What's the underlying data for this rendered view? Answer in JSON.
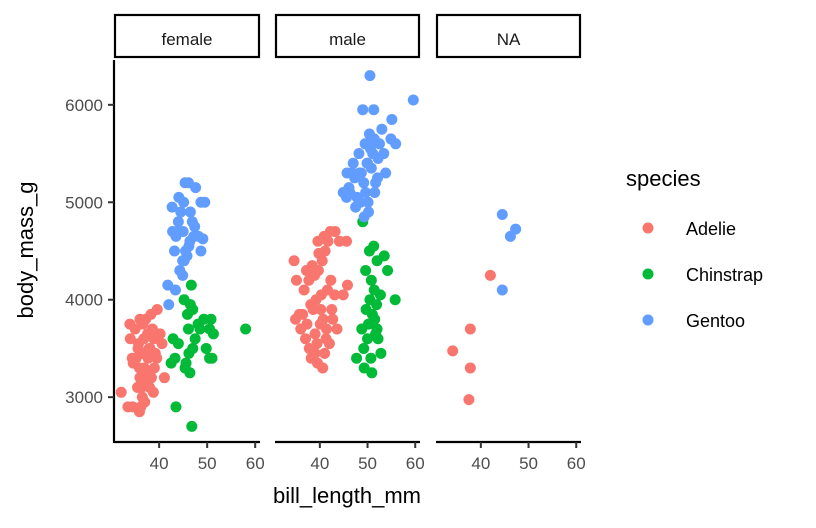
{
  "chart_data": {
    "type": "scatter",
    "xlabel": "bill_length_mm",
    "ylabel": "body_mass_g",
    "facet_by": "sex",
    "facets": [
      "female",
      "male",
      "NA"
    ],
    "xlim": [
      30.6,
      61
    ],
    "ylim": [
      2540,
      6460
    ],
    "x_ticks": [
      40,
      50,
      60
    ],
    "y_ticks": [
      3000,
      4000,
      5000,
      6000
    ],
    "y_tick_labels": [
      "3000",
      "4000",
      "5000",
      "6000"
    ],
    "x_tick_labels": [
      "40",
      "50",
      "60"
    ],
    "grid": false,
    "legend": {
      "title": "species",
      "position": "right",
      "entries": [
        {
          "label": "Adelie",
          "color": "#F8766D"
        },
        {
          "label": "Chinstrap",
          "color": "#00BA38"
        },
        {
          "label": "Gentoo",
          "color": "#619CFF"
        }
      ]
    },
    "series": [
      {
        "facet": "female",
        "species": "Adelie",
        "points": [
          [
            32.1,
            3050
          ],
          [
            33.5,
            2900
          ],
          [
            34.5,
            2900
          ],
          [
            35.9,
            2850
          ],
          [
            36.2,
            2900
          ],
          [
            36.5,
            3000
          ],
          [
            37.0,
            2950
          ],
          [
            35.5,
            3100
          ],
          [
            36.0,
            3200
          ],
          [
            37.3,
            3150
          ],
          [
            38.0,
            3100
          ],
          [
            38.8,
            3050
          ],
          [
            36.9,
            3300
          ],
          [
            35.2,
            3400
          ],
          [
            34.6,
            3350
          ],
          [
            36.4,
            3450
          ],
          [
            37.7,
            3400
          ],
          [
            38.1,
            3500
          ],
          [
            39.0,
            3300
          ],
          [
            39.5,
            3400
          ],
          [
            35.7,
            3550
          ],
          [
            36.8,
            3600
          ],
          [
            37.6,
            3650
          ],
          [
            38.6,
            3700
          ],
          [
            34.0,
            3600
          ],
          [
            35.0,
            3700
          ],
          [
            36.0,
            3800
          ],
          [
            37.2,
            3800
          ],
          [
            38.3,
            3850
          ],
          [
            39.6,
            3900
          ],
          [
            40.2,
            3650
          ],
          [
            36.6,
            3750
          ],
          [
            37.9,
            3500
          ],
          [
            34.4,
            3400
          ],
          [
            35.9,
            3300
          ],
          [
            38.9,
            3600
          ],
          [
            39.2,
            3450
          ],
          [
            37.5,
            3250
          ],
          [
            36.3,
            3100
          ],
          [
            40.6,
            3550
          ],
          [
            41.1,
            3200
          ],
          [
            33.9,
            3750
          ],
          [
            35.6,
            3500
          ],
          [
            38.4,
            3200
          ]
        ]
      },
      {
        "facet": "female",
        "species": "Chinstrap",
        "points": [
          [
            42.5,
            3350
          ],
          [
            43.3,
            3400
          ],
          [
            43.5,
            2900
          ],
          [
            46.4,
            3250
          ],
          [
            46.8,
            2700
          ],
          [
            45.4,
            3300
          ],
          [
            46.2,
            3450
          ],
          [
            47.0,
            3500
          ],
          [
            47.5,
            3600
          ],
          [
            48.5,
            3700
          ],
          [
            49.3,
            3800
          ],
          [
            50.5,
            3400
          ],
          [
            51.0,
            3400
          ],
          [
            50.5,
            3700
          ],
          [
            50.8,
            3800
          ],
          [
            51.3,
            3650
          ],
          [
            46.1,
            3700
          ],
          [
            45.9,
            3850
          ],
          [
            46.5,
            3950
          ],
          [
            46.7,
            4150
          ],
          [
            45.2,
            4000
          ],
          [
            44.0,
            3550
          ],
          [
            42.9,
            3600
          ],
          [
            58.0,
            3700
          ],
          [
            47.0,
            3900
          ],
          [
            48.1,
            3750
          ],
          [
            49.8,
            3500
          ],
          [
            45.6,
            3350
          ]
        ]
      },
      {
        "facet": "female",
        "species": "Gentoo",
        "points": [
          [
            42.0,
            3950
          ],
          [
            41.8,
            4150
          ],
          [
            43.4,
            4100
          ],
          [
            44.3,
            4300
          ],
          [
            44.9,
            4400
          ],
          [
            45.5,
            4500
          ],
          [
            46.2,
            4550
          ],
          [
            45.0,
            4700
          ],
          [
            43.5,
            4650
          ],
          [
            42.8,
            4700
          ],
          [
            44.0,
            4800
          ],
          [
            44.5,
            4900
          ],
          [
            45.1,
            5000
          ],
          [
            45.4,
            5200
          ],
          [
            46.1,
            5200
          ],
          [
            47.6,
            5150
          ],
          [
            48.7,
            5000
          ],
          [
            49.5,
            5000
          ],
          [
            47.4,
            4750
          ],
          [
            46.4,
            4600
          ],
          [
            46.9,
            4800
          ],
          [
            47.2,
            4650
          ],
          [
            48.2,
            4650
          ],
          [
            48.7,
            4500
          ],
          [
            45.8,
            4450
          ],
          [
            44.9,
            4250
          ],
          [
            43.8,
            4700
          ],
          [
            42.7,
            4950
          ],
          [
            44.1,
            5050
          ],
          [
            46.5,
            4900
          ],
          [
            49.1,
            4625
          ],
          [
            45.2,
            4400
          ],
          [
            43.2,
            4500
          ]
        ]
      },
      {
        "facet": "male",
        "species": "Adelie",
        "points": [
          [
            34.6,
            4400
          ],
          [
            35.1,
            4200
          ],
          [
            34.9,
            3800
          ],
          [
            36.0,
            3700
          ],
          [
            36.4,
            3850
          ],
          [
            37.0,
            3600
          ],
          [
            37.8,
            3500
          ],
          [
            38.2,
            3400
          ],
          [
            39.5,
            3350
          ],
          [
            40.6,
            3300
          ],
          [
            41.0,
            3450
          ],
          [
            42.0,
            3550
          ],
          [
            39.0,
            3650
          ],
          [
            40.1,
            3750
          ],
          [
            40.7,
            3800
          ],
          [
            41.4,
            3700
          ],
          [
            38.6,
            3900
          ],
          [
            39.2,
            4000
          ],
          [
            40.3,
            4050
          ],
          [
            41.6,
            4100
          ],
          [
            37.7,
            4200
          ],
          [
            38.9,
            4250
          ],
          [
            39.7,
            4300
          ],
          [
            40.5,
            4400
          ],
          [
            41.1,
            4500
          ],
          [
            39.6,
            4600
          ],
          [
            40.9,
            4650
          ],
          [
            42.2,
            4700
          ],
          [
            43.2,
            4700
          ],
          [
            41.7,
            4600
          ],
          [
            44.1,
            4600
          ],
          [
            45.6,
            4600
          ],
          [
            39.8,
            4475
          ],
          [
            42.3,
            4200
          ],
          [
            43.1,
            4050
          ],
          [
            42.5,
            3900
          ],
          [
            37.3,
            3750
          ],
          [
            38.1,
            3950
          ],
          [
            36.7,
            4100
          ],
          [
            35.7,
            3850
          ],
          [
            42.7,
            3800
          ],
          [
            39.4,
            3550
          ],
          [
            40.2,
            3900
          ],
          [
            41.3,
            3600
          ],
          [
            38.4,
            4350
          ],
          [
            37.2,
            4300
          ],
          [
            45.8,
            4150
          ],
          [
            44.9,
            4050
          ],
          [
            43.6,
            3700
          ],
          [
            39.0,
            3450
          ]
        ]
      },
      {
        "facet": "male",
        "species": "Chinstrap",
        "points": [
          [
            49.0,
            4800
          ],
          [
            50.4,
            4500
          ],
          [
            51.3,
            4550
          ],
          [
            52.0,
            4400
          ],
          [
            49.6,
            4300
          ],
          [
            50.8,
            4200
          ],
          [
            52.7,
            4050
          ],
          [
            51.9,
            3950
          ],
          [
            53.5,
            4450
          ],
          [
            49.7,
            3900
          ],
          [
            50.2,
            3750
          ],
          [
            51.5,
            3800
          ],
          [
            48.8,
            3700
          ],
          [
            50.0,
            3600
          ],
          [
            51.7,
            3650
          ],
          [
            52.2,
            3600
          ],
          [
            49.2,
            3500
          ],
          [
            50.7,
            3400
          ],
          [
            52.8,
            3450
          ],
          [
            54.2,
            4300
          ],
          [
            55.8,
            4000
          ],
          [
            49.3,
            3300
          ],
          [
            50.9,
            3250
          ],
          [
            47.7,
            3400
          ],
          [
            52.0,
            3700
          ],
          [
            51.4,
            4100
          ],
          [
            50.5,
            4000
          ],
          [
            51.0,
            3850
          ]
        ]
      },
      {
        "facet": "male",
        "species": "Gentoo",
        "points": [
          [
            48.3,
            5300
          ],
          [
            49.2,
            5200
          ],
          [
            50.0,
            5400
          ],
          [
            51.1,
            5500
          ],
          [
            49.5,
            5600
          ],
          [
            50.4,
            5700
          ],
          [
            49.0,
            5950
          ],
          [
            51.3,
            5950
          ],
          [
            50.5,
            6300
          ],
          [
            59.6,
            6050
          ],
          [
            55.9,
            5600
          ],
          [
            54.9,
            5650
          ],
          [
            53.0,
            5750
          ],
          [
            55.1,
            5850
          ],
          [
            52.2,
            5450
          ],
          [
            51.4,
            5650
          ],
          [
            50.6,
            5550
          ],
          [
            48.2,
            5500
          ],
          [
            46.8,
            5300
          ],
          [
            46.1,
            5150
          ],
          [
            47.3,
            5250
          ],
          [
            47.8,
            5050
          ],
          [
            48.7,
            5300
          ],
          [
            49.9,
            5400
          ],
          [
            51.5,
            5100
          ],
          [
            52.1,
            5250
          ],
          [
            53.4,
            5500
          ],
          [
            51.7,
            5200
          ],
          [
            46.3,
            5100
          ],
          [
            47.5,
            4950
          ],
          [
            48.5,
            5000
          ],
          [
            49.3,
            4850
          ],
          [
            50.1,
            5000
          ],
          [
            45.6,
            5050
          ],
          [
            50.8,
            5350
          ],
          [
            49.6,
            5100
          ],
          [
            52.5,
            5600
          ],
          [
            50.2,
            4900
          ],
          [
            44.9,
            5100
          ],
          [
            45.7,
            5300
          ],
          [
            53.8,
            5300
          ],
          [
            47.0,
            5400
          ]
        ]
      },
      {
        "facet": "NA",
        "species": "Adelie",
        "points": [
          [
            34.1,
            3475
          ],
          [
            37.8,
            3700
          ],
          [
            37.8,
            3300
          ],
          [
            37.5,
            2975
          ],
          [
            42.0,
            4250
          ]
        ]
      },
      {
        "facet": "NA",
        "species": "Gentoo",
        "points": [
          [
            44.5,
            4875
          ],
          [
            47.3,
            4725
          ],
          [
            46.2,
            4650
          ],
          [
            44.5,
            4100
          ]
        ]
      }
    ]
  }
}
